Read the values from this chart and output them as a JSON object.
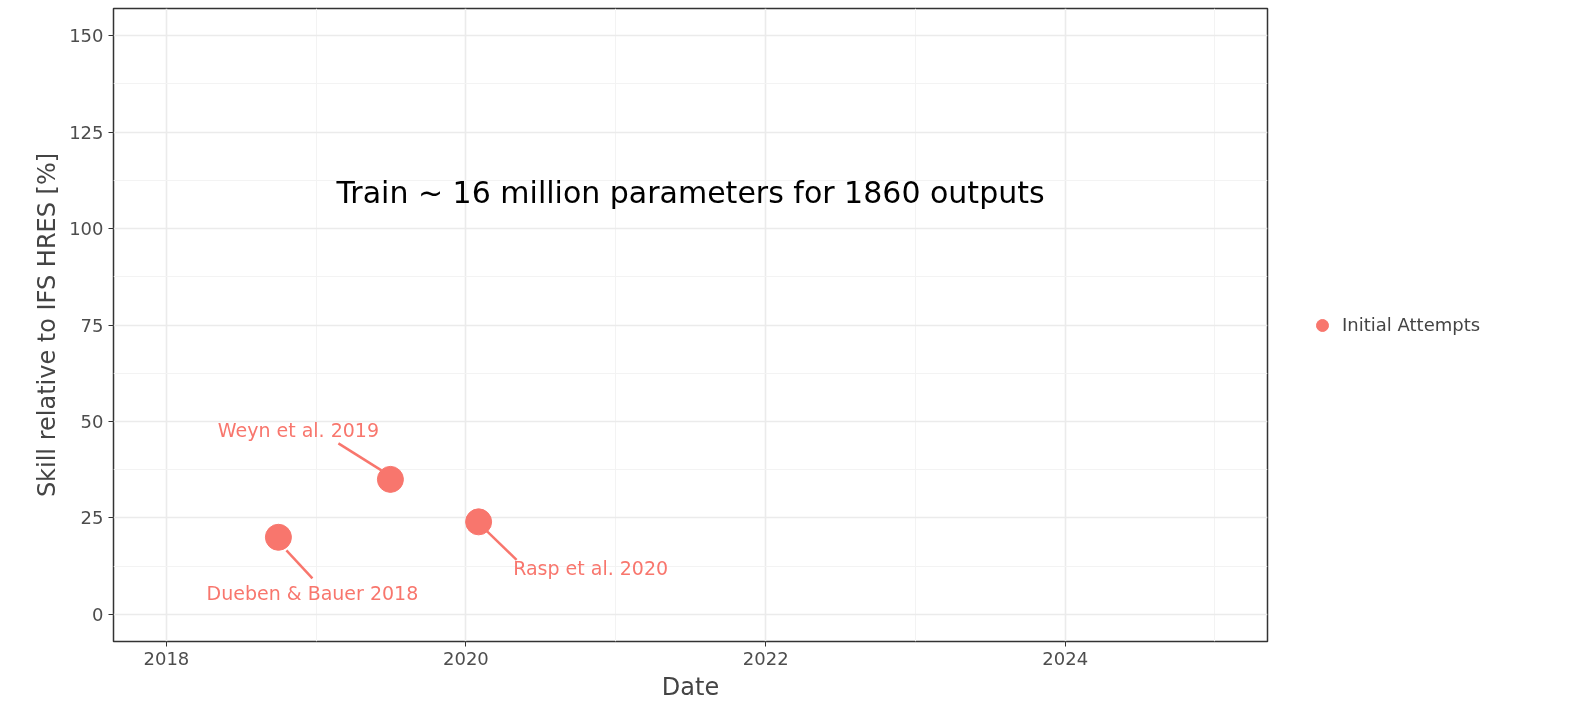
{
  "chart_data": {
    "type": "scatter",
    "xlabel": "Date",
    "ylabel": "Skill relative to IFS HRES [%]",
    "series": [
      {
        "name": "Initial Attempts",
        "color": "#f8766d",
        "x": [
          "2018-10",
          "2019-07",
          "2020-02"
        ],
        "values": [
          20,
          35,
          24
        ]
      }
    ],
    "annotations": [
      {
        "text": "Dueben & Bauer 2018",
        "x": "2018-10",
        "y": 20
      },
      {
        "text": "Weyn et al. 2019",
        "x": "2019-07",
        "y": 35
      },
      {
        "text": "Rasp et al. 2020",
        "x": "2020-02",
        "y": 24
      },
      "Train ~ 16 million parameters for 1860 outputs"
    ],
    "xlim": [
      "2017-08-25",
      "2025-05-08"
    ],
    "xticks": [
      {
        "value": "2018",
        "label": "2018"
      },
      {
        "value": "2020",
        "label": "2020"
      },
      {
        "value": "2022",
        "label": "2022"
      },
      {
        "value": "2024",
        "label": "2024"
      }
    ],
    "ylim": [
      -7,
      157
    ],
    "yticks": [
      0,
      25,
      50,
      75,
      100,
      125,
      150
    ],
    "grid": true,
    "legend": "right",
    "marker": "circle"
  }
}
